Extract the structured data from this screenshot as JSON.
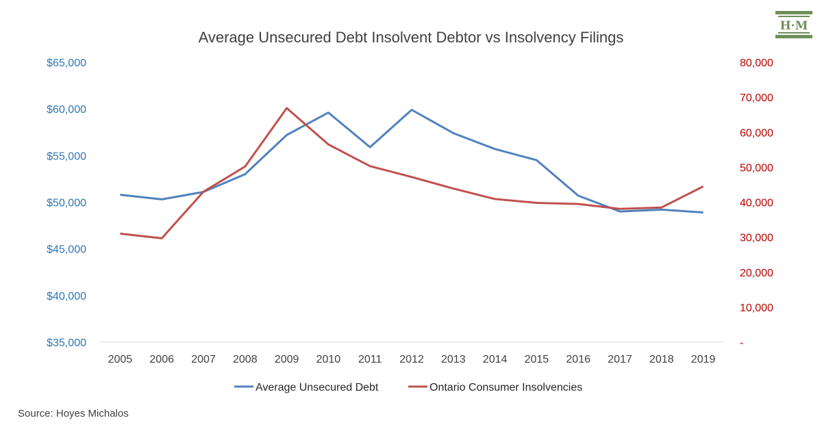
{
  "chart_data": {
    "type": "line",
    "title": "Average Unsecured Debt Insolvent Debtor vs Insolvency Filings",
    "categories": [
      "2005",
      "2006",
      "2007",
      "2008",
      "2009",
      "2010",
      "2011",
      "2012",
      "2013",
      "2014",
      "2015",
      "2016",
      "2017",
      "2018",
      "2019"
    ],
    "series": [
      {
        "name": "Average Unsecured Debt",
        "axis": "left",
        "color": "#4f81bd",
        "values": [
          50800,
          50300,
          51100,
          53000,
          57200,
          59600,
          55900,
          59900,
          57400,
          55700,
          54500,
          50700,
          49000,
          49200,
          48900
        ]
      },
      {
        "name": "Ontario Consumer Insolvencies",
        "axis": "right",
        "color": "#c0504d",
        "values": [
          31000,
          29700,
          43000,
          50200,
          66900,
          56500,
          50300,
          47200,
          43900,
          40900,
          39800,
          39500,
          38100,
          38500,
          44500
        ]
      }
    ],
    "y_left": {
      "ylim": [
        35000,
        65000
      ],
      "ticks": [
        35000,
        40000,
        45000,
        50000,
        55000,
        60000,
        65000
      ],
      "tick_labels": [
        "$35,000",
        "$40,000",
        "$45,000",
        "$50,000",
        "$55,000",
        "$60,000",
        "$65,000"
      ],
      "color": "#2e75b6"
    },
    "y_right": {
      "ylim": [
        0,
        80000
      ],
      "ticks": [
        0,
        10000,
        20000,
        30000,
        40000,
        50000,
        60000,
        70000,
        80000
      ],
      "tick_labels": [
        "-",
        "10,000",
        "20,000",
        "30,000",
        "40,000",
        "50,000",
        "60,000",
        "70,000",
        "80,000"
      ],
      "color": "#c00000"
    },
    "legend_position": "bottom",
    "grid": false
  },
  "source": "Source: Hoyes Michalos",
  "logo": {
    "text": "H·M"
  }
}
